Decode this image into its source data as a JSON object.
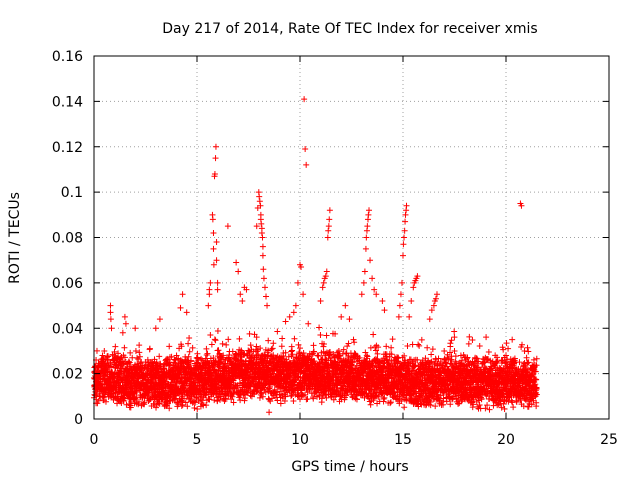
{
  "chart_data": {
    "type": "scatter",
    "title": "Day 217 of 2014, Rate Of TEC Index for receiver xmis",
    "xlabel": "GPS time / hours",
    "ylabel": "ROTI / TECUs",
    "xlim": [
      0,
      25
    ],
    "ylim": [
      0,
      0.16
    ],
    "x_ticks": [
      0,
      5,
      10,
      15,
      20,
      25
    ],
    "x_tick_labels": [
      "0",
      "5",
      "10",
      "15",
      "20",
      "25"
    ],
    "y_ticks": [
      0,
      0.02,
      0.04,
      0.06,
      0.08,
      0.1,
      0.12,
      0.14,
      0.16
    ],
    "y_tick_labels": [
      "0",
      "0.02",
      "0.04",
      "0.06",
      "0.08",
      "0.1",
      "0.12",
      "0.14",
      "0.16"
    ],
    "grid": true,
    "marker": "plus",
    "color": "#ff0000",
    "series": [
      {
        "name": "ROTI",
        "baseline": [
          [
            0.0,
            0.017
          ],
          [
            0.5,
            0.018
          ],
          [
            1.0,
            0.018
          ],
          [
            1.5,
            0.016
          ],
          [
            2.0,
            0.016
          ],
          [
            2.5,
            0.016
          ],
          [
            3.0,
            0.016
          ],
          [
            3.5,
            0.016
          ],
          [
            4.0,
            0.017
          ],
          [
            4.5,
            0.017
          ],
          [
            5.0,
            0.016
          ],
          [
            5.5,
            0.018
          ],
          [
            6.0,
            0.018
          ],
          [
            6.5,
            0.019
          ],
          [
            7.0,
            0.019
          ],
          [
            7.5,
            0.019
          ],
          [
            8.0,
            0.02
          ],
          [
            8.5,
            0.019
          ],
          [
            9.0,
            0.018
          ],
          [
            9.5,
            0.019
          ],
          [
            10.0,
            0.019
          ],
          [
            10.5,
            0.019
          ],
          [
            11.0,
            0.018
          ],
          [
            11.5,
            0.019
          ],
          [
            12.0,
            0.019
          ],
          [
            12.5,
            0.018
          ],
          [
            13.0,
            0.019
          ],
          [
            13.5,
            0.018
          ],
          [
            14.0,
            0.018
          ],
          [
            14.5,
            0.018
          ],
          [
            15.0,
            0.017
          ],
          [
            15.5,
            0.016
          ],
          [
            16.0,
            0.016
          ],
          [
            16.5,
            0.016
          ],
          [
            17.0,
            0.017
          ],
          [
            17.5,
            0.017
          ],
          [
            18.0,
            0.017
          ],
          [
            18.5,
            0.016
          ],
          [
            19.0,
            0.015
          ],
          [
            19.5,
            0.015
          ],
          [
            20.0,
            0.016
          ],
          [
            20.5,
            0.016
          ],
          [
            21.0,
            0.015
          ],
          [
            21.5,
            0.015
          ]
        ],
        "points": [
          [
            0.03,
            0.021
          ],
          [
            0.1,
            0.026
          ],
          [
            0.5,
            0.03
          ],
          [
            0.8,
            0.05
          ],
          [
            0.8,
            0.047
          ],
          [
            0.82,
            0.044
          ],
          [
            0.85,
            0.04
          ],
          [
            1.4,
            0.038
          ],
          [
            1.5,
            0.045
          ],
          [
            1.55,
            0.042
          ],
          [
            2.0,
            0.04
          ],
          [
            3.0,
            0.04
          ],
          [
            3.2,
            0.044
          ],
          [
            4.2,
            0.049
          ],
          [
            4.3,
            0.055
          ],
          [
            4.5,
            0.047
          ],
          [
            5.55,
            0.05
          ],
          [
            5.6,
            0.055
          ],
          [
            5.6,
            0.057
          ],
          [
            5.65,
            0.06
          ],
          [
            5.75,
            0.09
          ],
          [
            5.77,
            0.088
          ],
          [
            5.8,
            0.082
          ],
          [
            5.8,
            0.075
          ],
          [
            5.82,
            0.068
          ],
          [
            5.85,
            0.107
          ],
          [
            5.87,
            0.108
          ],
          [
            5.9,
            0.115
          ],
          [
            5.92,
            0.12
          ],
          [
            5.95,
            0.078
          ],
          [
            5.95,
            0.07
          ],
          [
            6.0,
            0.06
          ],
          [
            6.0,
            0.057
          ],
          [
            6.5,
            0.085
          ],
          [
            6.9,
            0.069
          ],
          [
            7.0,
            0.065
          ],
          [
            7.1,
            0.055
          ],
          [
            7.2,
            0.052
          ],
          [
            7.3,
            0.058
          ],
          [
            7.4,
            0.057
          ],
          [
            7.9,
            0.085
          ],
          [
            7.95,
            0.093
          ],
          [
            8.0,
            0.1
          ],
          [
            8.02,
            0.098
          ],
          [
            8.05,
            0.096
          ],
          [
            8.08,
            0.094
          ],
          [
            8.1,
            0.09
          ],
          [
            8.1,
            0.088
          ],
          [
            8.12,
            0.086
          ],
          [
            8.15,
            0.084
          ],
          [
            8.15,
            0.082
          ],
          [
            8.18,
            0.08
          ],
          [
            8.2,
            0.076
          ],
          [
            8.2,
            0.072
          ],
          [
            8.22,
            0.066
          ],
          [
            8.25,
            0.062
          ],
          [
            8.3,
            0.058
          ],
          [
            8.35,
            0.054
          ],
          [
            8.4,
            0.05
          ],
          [
            8.5,
            0.003
          ],
          [
            9.3,
            0.043
          ],
          [
            9.5,
            0.045
          ],
          [
            9.7,
            0.047
          ],
          [
            9.8,
            0.05
          ],
          [
            9.9,
            0.06
          ],
          [
            10.0,
            0.068
          ],
          [
            10.05,
            0.067
          ],
          [
            10.15,
            0.055
          ],
          [
            10.2,
            0.141
          ],
          [
            10.25,
            0.119
          ],
          [
            10.3,
            0.112
          ],
          [
            10.4,
            0.042
          ],
          [
            11.0,
            0.052
          ],
          [
            11.1,
            0.058
          ],
          [
            11.15,
            0.06
          ],
          [
            11.2,
            0.062
          ],
          [
            11.25,
            0.063
          ],
          [
            11.3,
            0.065
          ],
          [
            11.35,
            0.08
          ],
          [
            11.37,
            0.083
          ],
          [
            11.4,
            0.085
          ],
          [
            11.42,
            0.088
          ],
          [
            11.45,
            0.092
          ],
          [
            12.0,
            0.045
          ],
          [
            12.2,
            0.05
          ],
          [
            12.4,
            0.044
          ],
          [
            13.0,
            0.055
          ],
          [
            13.1,
            0.06
          ],
          [
            13.15,
            0.065
          ],
          [
            13.2,
            0.075
          ],
          [
            13.22,
            0.08
          ],
          [
            13.25,
            0.083
          ],
          [
            13.27,
            0.085
          ],
          [
            13.3,
            0.088
          ],
          [
            13.32,
            0.09
          ],
          [
            13.35,
            0.092
          ],
          [
            13.4,
            0.07
          ],
          [
            13.5,
            0.062
          ],
          [
            13.6,
            0.057
          ],
          [
            13.7,
            0.055
          ],
          [
            14.0,
            0.052
          ],
          [
            14.1,
            0.048
          ],
          [
            14.8,
            0.045
          ],
          [
            14.85,
            0.05
          ],
          [
            14.9,
            0.055
          ],
          [
            14.95,
            0.06
          ],
          [
            15.0,
            0.072
          ],
          [
            15.02,
            0.077
          ],
          [
            15.05,
            0.08
          ],
          [
            15.08,
            0.083
          ],
          [
            15.1,
            0.087
          ],
          [
            15.12,
            0.09
          ],
          [
            15.15,
            0.092
          ],
          [
            15.17,
            0.094
          ],
          [
            15.3,
            0.045
          ],
          [
            15.4,
            0.052
          ],
          [
            15.5,
            0.058
          ],
          [
            15.55,
            0.06
          ],
          [
            15.6,
            0.061
          ],
          [
            15.65,
            0.062
          ],
          [
            15.7,
            0.063
          ],
          [
            16.3,
            0.044
          ],
          [
            16.4,
            0.048
          ],
          [
            16.5,
            0.05
          ],
          [
            16.55,
            0.052
          ],
          [
            16.6,
            0.053
          ],
          [
            16.65,
            0.055
          ],
          [
            17.0,
            0.03
          ],
          [
            17.5,
            0.03
          ],
          [
            18.5,
            0.027
          ],
          [
            19.0,
            0.027
          ],
          [
            20.0,
            0.028
          ],
          [
            20.1,
            0.031
          ],
          [
            20.3,
            0.035
          ],
          [
            20.7,
            0.095
          ],
          [
            20.75,
            0.094
          ],
          [
            20.9,
            0.03
          ],
          [
            21.0,
            0.027
          ]
        ]
      }
    ]
  }
}
